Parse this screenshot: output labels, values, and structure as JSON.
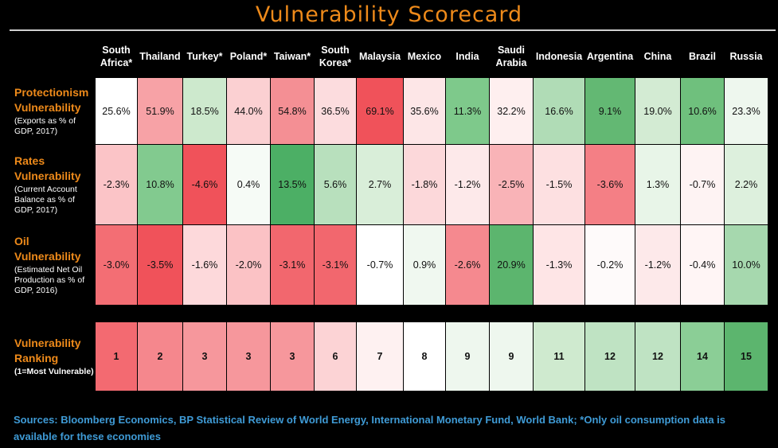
{
  "title": "Vulnerability Scorecard",
  "sources": "Sources: Bloomberg Economics, BP Statistical Review of World Energy, International Monetary Fund, World Bank; *Only oil consumption data is available for these economies",
  "colors": {
    "title": "#ee8a1a",
    "sources": "#3f9bd6",
    "red": "#f0525a",
    "green": "#4caf65",
    "neutral": "#ffffff"
  },
  "chart_data": {
    "type": "heatmap",
    "title": "Vulnerability Scorecard",
    "color_scale": "red (more vulnerable) - white - green (less vulnerable)",
    "columns": [
      [
        "South",
        "Africa*"
      ],
      [
        "Thailand"
      ],
      [
        "Turkey*"
      ],
      [
        "Poland*"
      ],
      [
        "Taiwan*"
      ],
      [
        "South",
        "Korea*"
      ],
      [
        "Malaysia"
      ],
      [
        "Mexico"
      ],
      [
        "India"
      ],
      [
        "Saudi",
        "Arabia"
      ],
      [
        "Indonesia"
      ],
      [
        "Argentina"
      ],
      [
        "China"
      ],
      [
        "Brazil"
      ],
      [
        "Russia"
      ]
    ],
    "rows": [
      {
        "label": "Protectionism Vulnerability",
        "sublabel": "(Exports as % of GDP, 2017)",
        "values": [
          "25.6%",
          "51.9%",
          "18.5%",
          "44.0%",
          "54.8%",
          "36.5%",
          "69.1%",
          "35.6%",
          "11.3%",
          "32.2%",
          "16.6%",
          "9.1%",
          "19.0%",
          "10.6%",
          "23.3%"
        ],
        "colors": [
          "#ffffff",
          "#f7a2a6",
          "#cde9cd",
          "#fbd0d2",
          "#f48f94",
          "#fcdcde",
          "#f0525a",
          "#fde6e7",
          "#7ec98b",
          "#feefef",
          "#b0dcb6",
          "#63b873",
          "#d3ebd3",
          "#6fc07d",
          "#eef7ee"
        ]
      },
      {
        "label": "Rates Vulnerability",
        "sublabel": "(Current Account Balance as % of GDP, 2017)",
        "values": [
          "-2.3%",
          "10.8%",
          "-4.6%",
          "0.4%",
          "13.5%",
          "5.6%",
          "2.7%",
          "-1.8%",
          "-1.2%",
          "-2.5%",
          "-1.5%",
          "-3.6%",
          "1.3%",
          "-0.7%",
          "2.2%"
        ],
        "colors": [
          "#fbc4c7",
          "#82ca8f",
          "#f0525a",
          "#f6fbf6",
          "#4caf65",
          "#b8e0bd",
          "#d9eed9",
          "#fcd8da",
          "#fde9ea",
          "#f9b3b7",
          "#fde0e1",
          "#f47f85",
          "#e8f5e8",
          "#fef3f3",
          "#ddf0dd"
        ]
      },
      {
        "label": "Oil Vulnerability",
        "sublabel": "(Estimated Net Oil Production as % of GDP, 2016)",
        "values": [
          "-3.0%",
          "-3.5%",
          "-1.6%",
          "-2.0%",
          "-3.1%",
          "-3.1%",
          "-0.7%",
          "0.9%",
          "-2.6%",
          "20.9%",
          "-1.3%",
          "-0.2%",
          "-1.2%",
          "-0.4%",
          "10.0%"
        ],
        "colors": [
          "#f36e74",
          "#f0525a",
          "#fdd9db",
          "#fbc2c5",
          "#f2676e",
          "#f2676e",
          "#ffffff",
          "#f0f8f0",
          "#f5898f",
          "#5cb56e",
          "#fee5e6",
          "#fefafa",
          "#fde9ea",
          "#fff5f5",
          "#a6d8ae"
        ]
      }
    ],
    "ranking": {
      "label": "Vulnerability Ranking",
      "sublabel": "(1=Most Vulnerable)",
      "values": [
        "1",
        "2",
        "3",
        "3",
        "3",
        "6",
        "7",
        "8",
        "9",
        "9",
        "11",
        "12",
        "12",
        "14",
        "15"
      ],
      "colors": [
        "#f36a71",
        "#f5878d",
        "#f6979c",
        "#f6979c",
        "#f6979c",
        "#fcd3d5",
        "#fef1f1",
        "#ffffff",
        "#eef7ee",
        "#eef7ee",
        "#cfeacf",
        "#bfe3c3",
        "#bfe3c3",
        "#8bce96",
        "#5cb56e"
      ]
    }
  }
}
